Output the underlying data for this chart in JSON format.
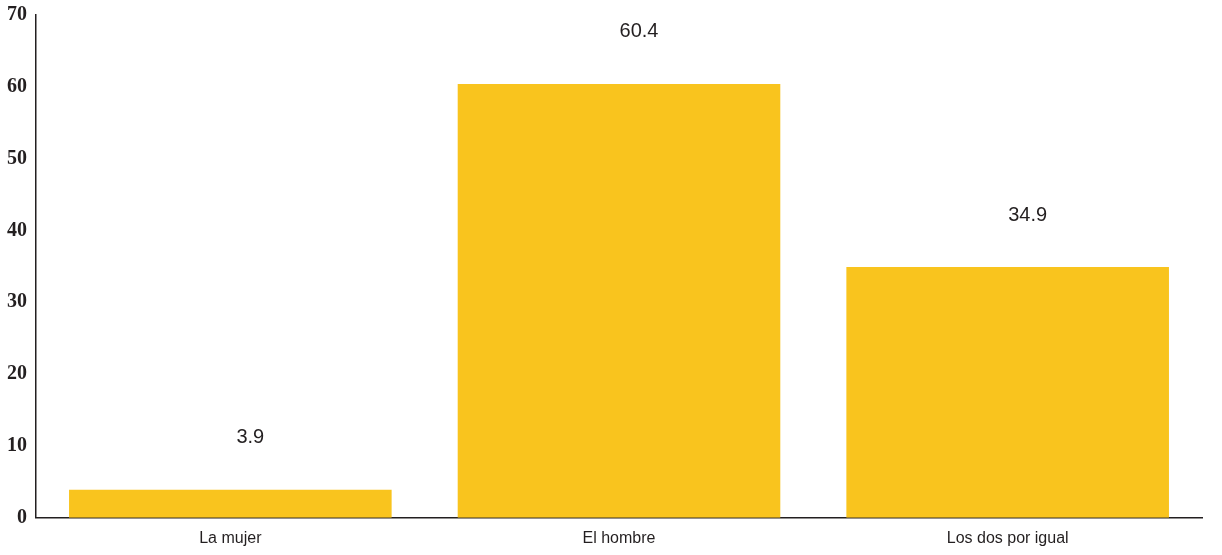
{
  "chart_data": {
    "type": "bar",
    "categories": [
      "La mujer",
      "El hombre",
      "Los dos por igual"
    ],
    "values": [
      3.9,
      60.4,
      34.9
    ],
    "color": "#f9c41e",
    "ylim": [
      0,
      70
    ],
    "yticks": [
      0,
      10,
      20,
      30,
      40,
      50,
      60,
      70
    ],
    "grid": false,
    "legend": false,
    "data_labels": true
  }
}
